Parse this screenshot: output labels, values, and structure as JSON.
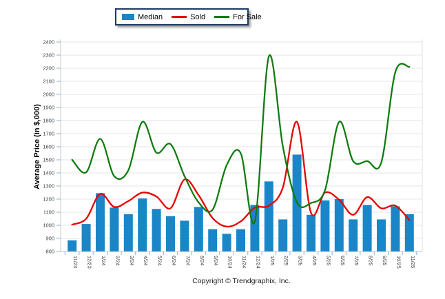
{
  "legend": {
    "items": [
      {
        "label": "Median",
        "swatch": "bar-swatch",
        "color": "#1a86c8"
      },
      {
        "label": "Sold",
        "swatch": "line-swatch",
        "color": "#e60000"
      },
      {
        "label": "For Sale",
        "swatch": "line-swatch",
        "color": "#107c10"
      }
    ]
  },
  "y_axis": {
    "label": "Average Price (in $,000)",
    "min": 800,
    "max": 2400,
    "step": 100
  },
  "footer": {
    "copyright": "Copyright © Trendgraphix, Inc."
  },
  "chart_data": {
    "type": "bar+line",
    "title": "",
    "xlabel": "",
    "ylabel": "Average Price (in $,000)",
    "ylim": [
      800,
      2400
    ],
    "grid": true,
    "legend_position": "top-center",
    "categories": [
      "11/23",
      "12/23",
      "1/24",
      "2/24",
      "3/24",
      "4/24",
      "5/24",
      "6/24",
      "7/24",
      "8/24",
      "9/24",
      "10/24",
      "11/24",
      "12/24",
      "1/25",
      "2/25",
      "3/25",
      "4/25",
      "5/25",
      "6/25",
      "7/25",
      "8/25",
      "9/25",
      "10/25",
      "11/25"
    ],
    "series": [
      {
        "name": "Median",
        "type": "bar",
        "color": "#1a86c8",
        "values": [
          885,
          1010,
          1245,
          1135,
          1085,
          1205,
          1125,
          1070,
          1035,
          1140,
          970,
          935,
          970,
          1155,
          1335,
          1045,
          1540,
          1080,
          1190,
          1200,
          1045,
          1155,
          1045,
          1145,
          1085
        ]
      },
      {
        "name": "Sold",
        "type": "line",
        "color": "#e60000",
        "values": [
          1005,
          1050,
          1240,
          1140,
          1185,
          1250,
          1220,
          1130,
          1350,
          1230,
          1055,
          990,
          1030,
          1135,
          1150,
          1290,
          1790,
          1095,
          1250,
          1195,
          1080,
          1215,
          1130,
          1150,
          1040
        ]
      },
      {
        "name": "For Sale",
        "type": "line",
        "color": "#107c10",
        "values": [
          1500,
          1405,
          1660,
          1375,
          1420,
          1790,
          1555,
          1620,
          1375,
          1175,
          1120,
          1460,
          1550,
          1030,
          2290,
          1600,
          1175,
          1170,
          1270,
          1790,
          1490,
          1490,
          1480,
          2170,
          2210
        ]
      }
    ]
  }
}
